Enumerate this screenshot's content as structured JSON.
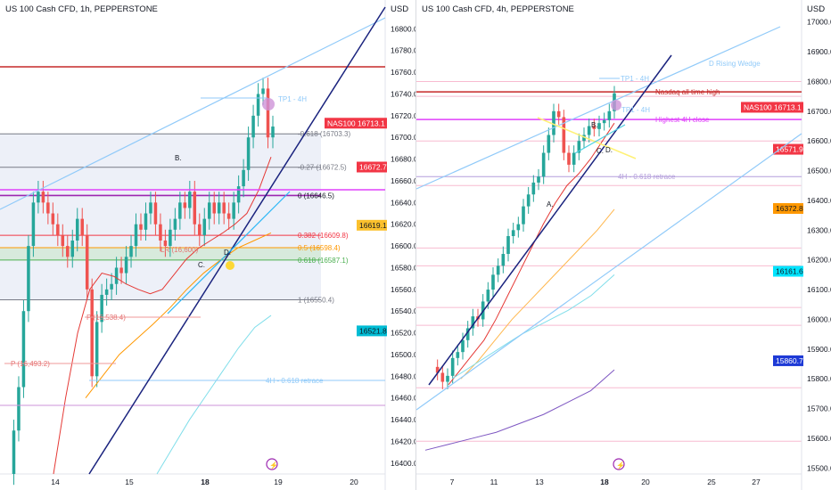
{
  "chart_data": [
    {
      "type": "candlestick",
      "title": "US 100 Cash CFD, 1h, PEPPERSTONE",
      "currency": "USD",
      "ylim": [
        16390,
        16820
      ],
      "y_ticks": [
        16400,
        16420,
        16440,
        16460,
        16480,
        16500,
        16520,
        16540,
        16560,
        16580,
        16600,
        16620,
        16640,
        16660,
        16680,
        16700,
        16720,
        16740,
        16760,
        16780,
        16800
      ],
      "x_ticks": [
        {
          "label": "14",
          "day": 14
        },
        {
          "label": "15",
          "day": 15
        },
        {
          "label": "18",
          "day": 18
        },
        {
          "label": "19",
          "day": 19
        },
        {
          "label": "20",
          "day": 20
        }
      ],
      "close_series": [
        16390,
        16430,
        16470,
        16540,
        16600,
        16640,
        16650,
        16640,
        16630,
        16620,
        16610,
        16600,
        16590,
        16605,
        16625,
        16610,
        16560,
        16480,
        16530,
        16555,
        16560,
        16565,
        16580,
        16575,
        16590,
        16600,
        16620,
        16615,
        16630,
        16640,
        16620,
        16605,
        16600,
        16615,
        16625,
        16640,
        16635,
        16650,
        16620,
        16610,
        16625,
        16640,
        16630,
        16640,
        16630,
        16625,
        16640,
        16655,
        16670,
        16700,
        16720,
        16740,
        16745,
        16700,
        16710
      ],
      "ma_red": [
        16390,
        16460,
        16520,
        16560,
        16575,
        16572,
        16565,
        16560,
        16556,
        16560,
        16574,
        16588,
        16598,
        16605,
        16612,
        16620,
        16630,
        16652,
        16682
      ],
      "ma_orange": [
        16460,
        16480,
        16500,
        16514,
        16528,
        16543,
        16560,
        16575,
        16587,
        16598,
        16605,
        16612
      ],
      "ma_cyan": [
        16390,
        16415,
        16440,
        16462,
        16484,
        16506,
        16525,
        16536
      ],
      "levels": [
        {
          "label": "-0.618 (16703.3)",
          "value": 16703.3
        },
        {
          "label": "-0.27 (16672.5)",
          "value": 16672.5
        },
        {
          "label": "0 (16646.5)",
          "value": 16646.5
        },
        {
          "label": "0.382 (16609.8)",
          "value": 16609.8
        },
        {
          "label": "0.5 (16598.4)",
          "value": 16598.4
        },
        {
          "label": "0.618 (16587.1)",
          "value": 16587.1
        },
        {
          "label": "1 (16550.4)",
          "value": 16550.4
        }
      ],
      "pivots": [
        {
          "label": "P (16,538.4)",
          "value": 16538.4
        },
        {
          "label": "P (16,493.2)",
          "value": 16493.2
        },
        {
          "label": "LR (16,600)",
          "value": 16600
        }
      ],
      "annotations": [
        "TP1 - 4H",
        "4H - 0.618 retrace",
        "B.",
        "C.",
        "D."
      ],
      "price_tags": [
        {
          "label": "NAS100",
          "value": "16713.1",
          "price": 16713.1,
          "color": "#f23645"
        },
        {
          "label": "",
          "value": "16672.7",
          "price": 16672.7,
          "color": "#f23645"
        },
        {
          "label": "",
          "value": "16619.1",
          "price": 16619.1,
          "color": "#fbc02d"
        },
        {
          "label": "",
          "value": "16521.8",
          "price": 16521.8,
          "color": "#00bcd4"
        }
      ]
    },
    {
      "type": "candlestick",
      "title": "US 100 Cash CFD, 4h, PEPPERSTONE",
      "currency": "USD",
      "ylim": [
        15480,
        17050
      ],
      "y_ticks": [
        15500,
        15600,
        15700,
        15800,
        15900,
        16000,
        16100,
        16200,
        16300,
        16400,
        16500,
        16600,
        16700,
        16800,
        16900,
        17000
      ],
      "x_ticks": [
        {
          "label": "7",
          "day": 7
        },
        {
          "label": "11",
          "day": 11
        },
        {
          "label": "13",
          "day": 13
        },
        {
          "label": "18",
          "day": 18
        },
        {
          "label": "20",
          "day": 20
        },
        {
          "label": "25",
          "day": 25
        },
        {
          "label": "27",
          "day": 27
        }
      ],
      "close_series": [
        15840,
        15820,
        15790,
        15810,
        15870,
        15890,
        15930,
        15970,
        16010,
        16000,
        16060,
        16100,
        16150,
        16180,
        16220,
        16280,
        16300,
        16320,
        16380,
        16420,
        16460,
        16480,
        16560,
        16620,
        16700,
        16680,
        16560,
        16520,
        16560,
        16600,
        16620,
        16650,
        16640,
        16660,
        16670,
        16700,
        16760
      ],
      "ma_red": [
        15780,
        15830,
        15880,
        15930,
        16000,
        16080,
        16160,
        16240,
        16320,
        16390,
        16450,
        16490,
        16540,
        16600,
        16660
      ],
      "ma_orange": [
        15800,
        15860,
        15930,
        16000,
        16060,
        16120,
        16180,
        16240,
        16300,
        16370
      ],
      "ma_cyan": [
        15800,
        15850,
        15900,
        15950,
        15990,
        16030,
        16080,
        16150
      ],
      "ma_purple": [
        15560,
        15580,
        15600,
        15620,
        15650,
        15680,
        15720,
        15760,
        15830
      ],
      "levels": [
        {
          "label": "Nasdaq all time high",
          "value": 16765
        },
        {
          "label": "Highest 4H close",
          "value": 16672
        },
        {
          "label": "4H - 0.618 retrace",
          "value": 16480
        }
      ],
      "annotations": [
        "D Rising Wedge",
        "TP1 - 4H",
        "TP1 - 4H",
        "A.",
        "B.",
        "C.",
        "D."
      ],
      "price_tags": [
        {
          "label": "NAS100",
          "value": "16713.1",
          "price": 16713.1,
          "color": "#f23645"
        },
        {
          "label": "",
          "value": "16571.9",
          "price": 16571.9,
          "color": "#f23645"
        },
        {
          "label": "",
          "value": "16372.8",
          "price": 16372.8,
          "color": "#ff9800"
        },
        {
          "label": "",
          "value": "16161.6",
          "price": 16161.6,
          "color": "#00e5ff"
        },
        {
          "label": "",
          "value": "15860.7",
          "price": 15860.7,
          "color": "#1e3ad6"
        }
      ]
    }
  ]
}
